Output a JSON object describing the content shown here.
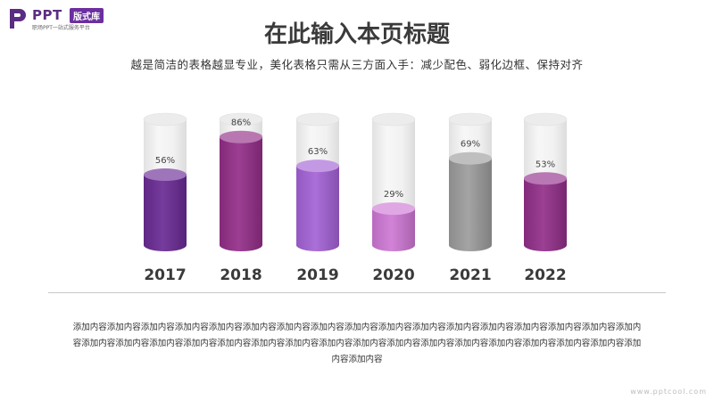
{
  "logo": {
    "name": "PPT",
    "badge": "版式库",
    "tagline": "职场PPT一站式服务平台"
  },
  "title": "在此输入本页标题",
  "subtitle": "越是简洁的表格越显专业，美化表格只需从三方面入手：减少配色、弱化边框、保持对齐",
  "chart_data": {
    "type": "bar",
    "categories": [
      "2017",
      "2018",
      "2019",
      "2020",
      "2021",
      "2022"
    ],
    "values": [
      56,
      86,
      63,
      29,
      69,
      53
    ],
    "value_format": "{v}%",
    "ylim": [
      0,
      100
    ],
    "colors": [
      "#6a2b95",
      "#932e88",
      "#a462d6",
      "#ce78d4",
      "#9c9c9c",
      "#922f8a"
    ],
    "style": "3d-cylinder",
    "grid": false,
    "legend": "none"
  },
  "body": "添加内容添加内容添加内容添加内容添加内容添加内容添加内容添加内容添加内容添加内容添加内容添加内容添加内容添加内容添加内容添加内容添加内容添加内容添加内容添加内容添加内容添加内容添加内容添加内容添加内容添加内容添加内容添加内容添加内容添加内容添加内容添加内容添加内容添加内容添加内容",
  "watermark": "www.pptcool.com"
}
